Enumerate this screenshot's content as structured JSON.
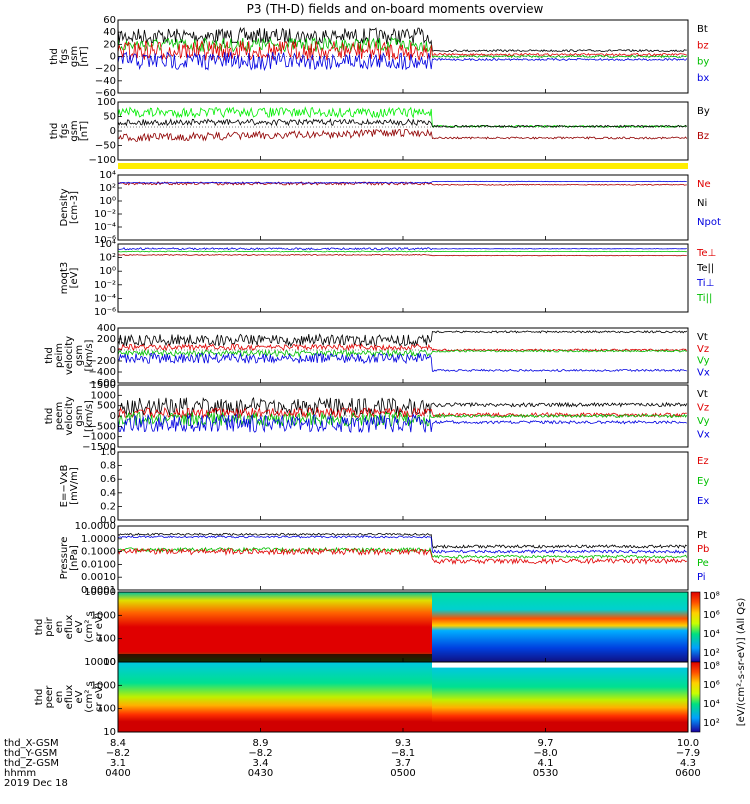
{
  "title": "P3 (TH-D) fields and on-board moments overview",
  "panels": [
    {
      "id": "p1",
      "ylabel": [
        "thd",
        "fgs",
        "gsm",
        "[nT]"
      ],
      "ticks": [
        "60",
        "40",
        "20",
        "0",
        "−20",
        "−40",
        "−60"
      ],
      "legend": [
        {
          "t": "Bt",
          "c": "#000000"
        },
        {
          "t": "bz",
          "c": "#e00000"
        },
        {
          "t": "by",
          "c": "#00c000"
        },
        {
          "t": "bx",
          "c": "#0000e0"
        }
      ]
    },
    {
      "id": "p2",
      "ylabel": [
        "thd",
        "fgs",
        "gsm",
        "[nT]"
      ],
      "ticks": [
        "100",
        "50",
        "0",
        "−50",
        "−100"
      ],
      "legend": [
        {
          "t": "By",
          "c": "#000000"
        },
        {
          "t": "Bz",
          "c": "#b00000"
        }
      ]
    },
    {
      "id": "p3",
      "ylabel": [
        "Density",
        "[cm-3]"
      ],
      "ticks": [
        "10⁴",
        "10²",
        "10⁰",
        "10⁻²",
        "10⁻⁴",
        "10⁻⁶"
      ],
      "legend": [
        {
          "t": "Ne",
          "c": "#e00000"
        },
        {
          "t": "Ni",
          "c": "#000000"
        },
        {
          "t": "Npot",
          "c": "#0000e0"
        }
      ]
    },
    {
      "id": "p4",
      "ylabel": [
        "moqt3",
        "[eV]"
      ],
      "ticks": [
        "10⁴",
        "10²",
        "10⁰",
        "10⁻²",
        "10⁻⁴",
        "10⁻⁶"
      ],
      "legend": [
        {
          "t": "Te⊥",
          "c": "#e00000"
        },
        {
          "t": "Te||",
          "c": "#000000"
        },
        {
          "t": "Ti⊥",
          "c": "#0000e0"
        },
        {
          "t": "Ti||",
          "c": "#00c000"
        }
      ]
    },
    {
      "id": "p5",
      "ylabel": [
        "thd",
        "peim",
        "velocity",
        "gsm",
        "[km/s]"
      ],
      "ticks": [
        "400",
        "200",
        "0",
        "−200",
        "−400",
        "−600"
      ],
      "legend": [
        {
          "t": "Vt",
          "c": "#000000"
        },
        {
          "t": "Vz",
          "c": "#e00000"
        },
        {
          "t": "Vy",
          "c": "#00c000"
        },
        {
          "t": "Vx",
          "c": "#0000e0"
        }
      ]
    },
    {
      "id": "p6",
      "ylabel": [
        "thd",
        "peem",
        "velocity",
        "gsm",
        "[km/s]"
      ],
      "ticks": [
        "1500",
        "1000",
        "500",
        "0",
        "−500",
        "−1000",
        "−1500"
      ],
      "legend": [
        {
          "t": "Vt",
          "c": "#000000"
        },
        {
          "t": "Vz",
          "c": "#e00000"
        },
        {
          "t": "Vy",
          "c": "#00c000"
        },
        {
          "t": "Vx",
          "c": "#0000e0"
        }
      ]
    },
    {
      "id": "p7",
      "ylabel": [
        "E=−VxB",
        "[mV/m]"
      ],
      "ticks": [
        "1.0",
        "0.8",
        "0.6",
        "0.4",
        "0.2",
        "0.0"
      ],
      "legend": [
        {
          "t": "Ez",
          "c": "#e00000"
        },
        {
          "t": "Ey",
          "c": "#00c000"
        },
        {
          "t": "Ex",
          "c": "#0000e0"
        }
      ]
    },
    {
      "id": "p8",
      "ylabel": [
        "Pressure",
        "[nPa]"
      ],
      "ticks": [
        "10.0000",
        "1.0000",
        "0.1000",
        "0.0100",
        "0.0010",
        "0.0001"
      ],
      "legend": [
        {
          "t": "Pt",
          "c": "#000000"
        },
        {
          "t": "Pb",
          "c": "#e00000"
        },
        {
          "t": "Pe",
          "c": "#00c000"
        },
        {
          "t": "Pi",
          "c": "#0000e0"
        }
      ]
    },
    {
      "id": "p9",
      "ylabel": [
        "thd",
        "peir",
        "en",
        "eflux",
        "eV",
        "(cm² s",
        "sr eV)"
      ],
      "ticks": [
        "10000",
        "1000",
        "100",
        "10"
      ],
      "legend": []
    },
    {
      "id": "p10",
      "ylabel": [
        "thd",
        "peer",
        "en",
        "eflux",
        "eV",
        "(cm² s",
        "sr eV)"
      ],
      "ticks": [
        "10000",
        "1000",
        "100",
        "10"
      ],
      "legend": []
    }
  ],
  "colorbar": {
    "ticks": [
      "10⁸",
      "10⁶",
      "10⁴",
      "10²",
      "10⁸",
      "10⁶",
      "10⁴",
      "10²"
    ],
    "label": "[eV/(cm²-s-sr-eV)] (All Qs)"
  },
  "bottom": {
    "rows": [
      "thd_X-GSM",
      "thd_Y-GSM",
      "thd_Z-GSM",
      "hhmm"
    ],
    "date": "2019 Dec 18",
    "columns": [
      [
        "8.4",
        "−8.2",
        "3.1",
        "0400"
      ],
      [
        "8.9",
        "−8.2",
        "3.4",
        "0430"
      ],
      [
        "9.3",
        "−8.1",
        "3.7",
        "0500"
      ],
      [
        "9.7",
        "−8.0",
        "4.1",
        "0530"
      ],
      [
        "10.0",
        "−7.9",
        "4.3",
        "0600"
      ]
    ]
  },
  "chart_data": {
    "type": "line",
    "title": "P3 (TH-D) fields and on-board moments overview",
    "x": [
      "0400",
      "0430",
      "0500",
      "0530",
      "0600"
    ],
    "xlim": [
      "0400",
      "0600"
    ],
    "series": [
      {
        "name": "Bt",
        "panel": 1,
        "values": [
          40,
          42,
          35,
          10,
          10
        ]
      },
      {
        "name": "bz",
        "panel": 1,
        "values": [
          10,
          12,
          15,
          5,
          5
        ]
      },
      {
        "name": "by",
        "panel": 1,
        "values": [
          20,
          22,
          18,
          2,
          2
        ]
      },
      {
        "name": "bx",
        "panel": 1,
        "values": [
          -10,
          -8,
          -5,
          -2,
          -2
        ]
      },
      {
        "name": "Vt",
        "panel": 5,
        "values": [
          150,
          200,
          150,
          350,
          300
        ]
      },
      {
        "name": "Vx",
        "panel": 5,
        "values": [
          -100,
          -120,
          -100,
          -380,
          -380
        ]
      }
    ],
    "ylim": {
      "p1": [
        -60,
        60
      ],
      "p2": [
        -100,
        100
      ],
      "p5": [
        -600,
        400
      ],
      "p6": [
        -1500,
        1500
      ],
      "p7": [
        0,
        1
      ]
    }
  }
}
